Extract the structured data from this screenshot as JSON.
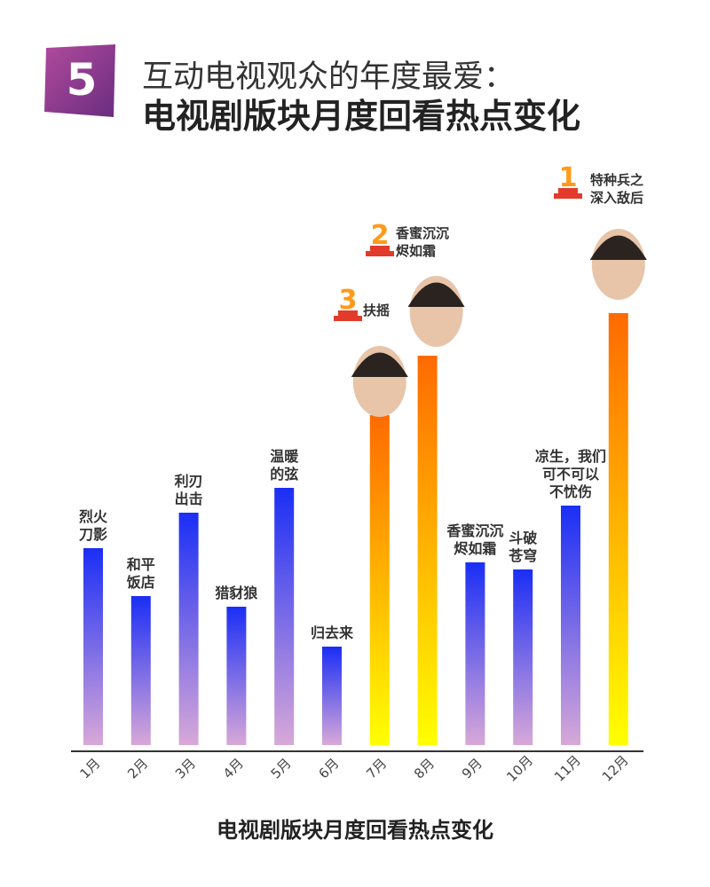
{
  "header": {
    "badge_number": "5",
    "title_main": "互动电视观众的年度最爱：",
    "title_sub": "电视剧版块月度回看热点变化"
  },
  "chart_data": {
    "type": "bar",
    "title": "电视剧版块月度回看热点变化",
    "categories": [
      "1月",
      "2月",
      "3月",
      "4月",
      "5月",
      "6月",
      "7月",
      "8月",
      "9月",
      "10月",
      "11月",
      "12月"
    ],
    "values": [
      222,
      168,
      262,
      156,
      290,
      111,
      372,
      439,
      206,
      198,
      270,
      487
    ],
    "ylim": [
      0,
      500
    ],
    "bar_labels": [
      [
        "烈火",
        "刀影"
      ],
      [
        "和平",
        "饭店"
      ],
      [
        "利刃",
        "出击"
      ],
      [
        "猎豺狼"
      ],
      [
        "温暖",
        "的弦"
      ],
      [
        "归去来"
      ],
      [
        "扶摇"
      ],
      [
        "香蜜沉沉",
        "烬如霜"
      ],
      [
        "香蜜沉沉",
        "烬如霜"
      ],
      [
        "斗破",
        "苍穹"
      ],
      [
        "凉生，我们",
        "可不可以",
        "不忧伤"
      ],
      [
        "特种兵之",
        "深入敌后"
      ]
    ],
    "rankings": [
      {
        "category_index": 11,
        "rank": "1"
      },
      {
        "category_index": 7,
        "rank": "2"
      },
      {
        "category_index": 6,
        "rank": "3"
      }
    ],
    "colors": {
      "normal_top": "#1a2ef5",
      "normal_bottom": "#d8a8d8",
      "hot_top": "#ff6a00",
      "hot_bottom": "#ffff00",
      "rank_number": "#ff9a1a",
      "podium": "#e23b2b",
      "badge": "#8b3a8f",
      "axis": "#333333"
    },
    "grid": false,
    "legend": "none"
  },
  "footer": {
    "chart_title": "电视剧版块月度回看热点变化"
  }
}
